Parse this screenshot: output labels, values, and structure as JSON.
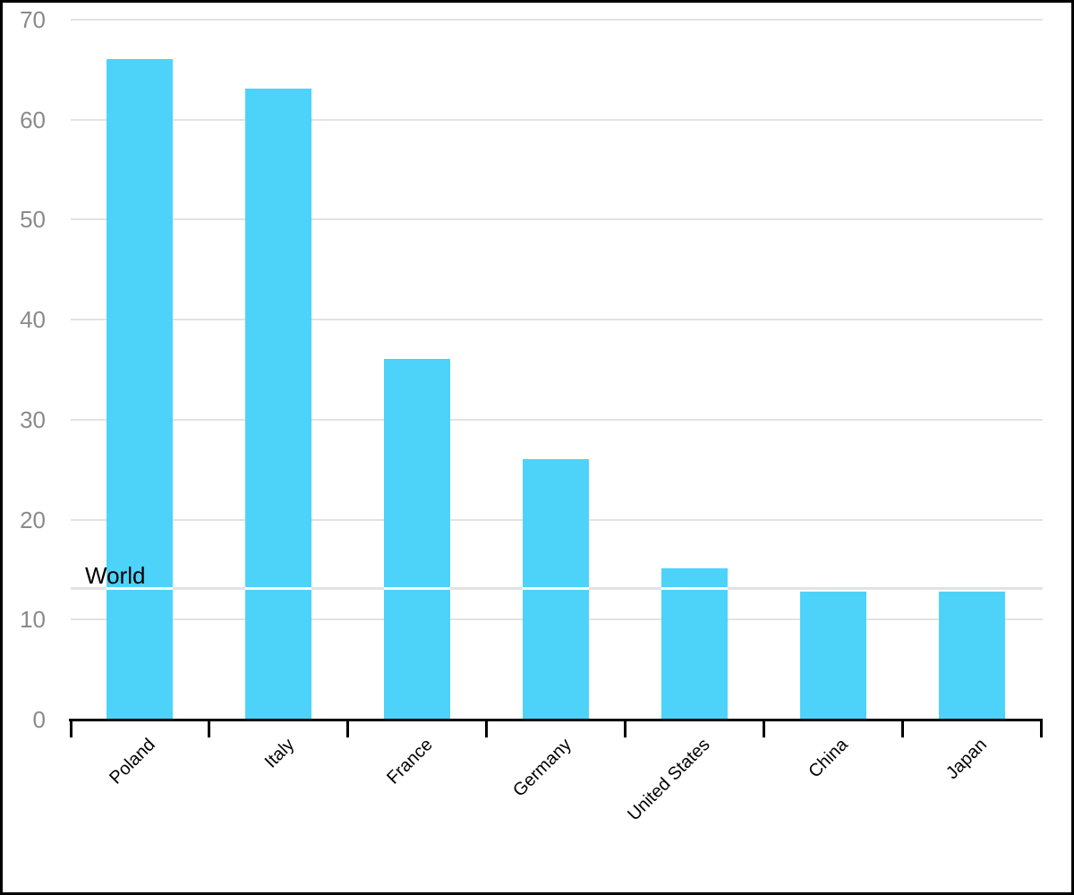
{
  "chart_data": {
    "type": "bar",
    "categories": [
      "Poland",
      "Italy",
      "France",
      "Germany",
      "United States",
      "China",
      "Japan"
    ],
    "values": [
      66,
      63,
      36,
      26,
      15,
      12.7,
      12.7
    ],
    "ylim": [
      0,
      70
    ],
    "yticks": [
      0,
      10,
      20,
      30,
      40,
      50,
      60,
      70
    ],
    "grid": true,
    "legend": null,
    "reference_line": {
      "label": "World",
      "value": 13
    },
    "colors": {
      "bar": "#4dd3f9",
      "gridline": "#e2e2e2",
      "axis": "#000000",
      "ytick_label": "#8a8a8a",
      "xtick_label": "#000000",
      "reference_line": "#e2e2e2",
      "reference_line_over_bar": "#ffffff",
      "reference_label": "#000000",
      "background": "#ffffff"
    }
  }
}
